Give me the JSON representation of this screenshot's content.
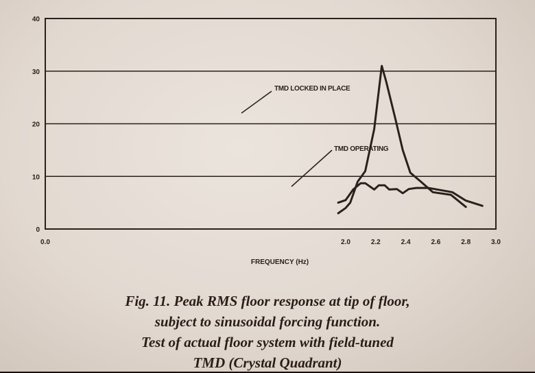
{
  "chart_data": {
    "type": "line",
    "title": "",
    "xlabel": "FREQUENCY (Hz)",
    "ylabel": "",
    "xlim": [
      0.0,
      3.0
    ],
    "ylim": [
      0,
      40
    ],
    "x_ticks": [
      "0.0",
      "2.0",
      "2.2",
      "2.4",
      "2.6",
      "2.8",
      "3.0"
    ],
    "y_ticks": [
      "0",
      "10",
      "20",
      "30",
      "40"
    ],
    "grid": "horizontal",
    "series": [
      {
        "name": "TMD LOCKED IN PLACE",
        "x": [
          1.95,
          2.0,
          2.03,
          2.08,
          2.13,
          2.19,
          2.24,
          2.27,
          2.33,
          2.38,
          2.43,
          2.5,
          2.58,
          2.7,
          2.8
        ],
        "y": [
          3.0,
          4.0,
          5.0,
          9.0,
          11.0,
          19.0,
          31.0,
          28.0,
          21.0,
          15.0,
          10.7,
          9.0,
          7.0,
          6.5,
          4.2
        ]
      },
      {
        "name": "TMD OPERATING",
        "x": [
          1.95,
          2.0,
          2.05,
          2.1,
          2.13,
          2.19,
          2.22,
          2.26,
          2.29,
          2.34,
          2.38,
          2.42,
          2.47,
          2.55,
          2.63,
          2.71,
          2.8,
          2.91
        ],
        "y": [
          5.0,
          5.5,
          7.5,
          8.7,
          8.7,
          7.5,
          8.3,
          8.3,
          7.5,
          7.6,
          6.8,
          7.6,
          7.8,
          7.8,
          7.4,
          7.0,
          5.4,
          4.4
        ]
      }
    ]
  },
  "caption": {
    "line1": "Fig. 11.  Peak RMS floor response at tip of floor,",
    "line2": "subject to sinusoidal forcing function.",
    "line3": "Test of actual floor system with field-tuned",
    "line4": "TMD (Crystal Quadrant)"
  },
  "colors": {
    "ink": "#2a201c",
    "paper": "#e6dfd8"
  }
}
